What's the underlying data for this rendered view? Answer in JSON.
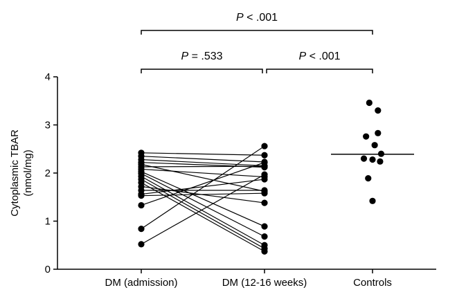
{
  "chart_data": {
    "type": "scatter",
    "ylabel_line1": "Cytoplasmic TBAR",
    "ylabel_line2": "(nmol/mg)",
    "ylim": [
      0,
      4
    ],
    "yticks": [
      "0",
      "1",
      "2",
      "3",
      "4"
    ],
    "categories": [
      "DM (admission)",
      "DM (12-16 weeks)",
      "Controls"
    ],
    "paired": [
      [
        2.42,
        2.37
      ],
      [
        2.35,
        2.23
      ],
      [
        2.28,
        2.15
      ],
      [
        2.22,
        2.12
      ],
      [
        2.18,
        1.62
      ],
      [
        2.13,
        2.14
      ],
      [
        2.08,
        1.92
      ],
      [
        2.03,
        0.89
      ],
      [
        1.99,
        0.68
      ],
      [
        1.93,
        0.5
      ],
      [
        1.87,
        0.43
      ],
      [
        1.8,
        0.37
      ],
      [
        1.72,
        1.38
      ],
      [
        1.64,
        1.64
      ],
      [
        1.56,
        1.87
      ],
      [
        1.53,
        1.58
      ],
      [
        1.33,
        2.22
      ],
      [
        0.84,
        2.56
      ],
      [
        0.52,
        1.97
      ]
    ],
    "controls": [
      3.46,
      3.3,
      2.83,
      2.76,
      2.58,
      2.4,
      2.3,
      2.28,
      2.24,
      1.89,
      1.42
    ],
    "controls_jitter": [
      -0.03,
      0.05,
      0.05,
      -0.06,
      0.02,
      0.08,
      -0.08,
      0.0,
      0.07,
      -0.04,
      0.0
    ],
    "controls_line": 2.39,
    "annotations": [
      {
        "text": "P < .001",
        "from": 0,
        "to": 2,
        "level": 2
      },
      {
        "text": "P = .533",
        "from": 0,
        "to": 1,
        "level": 1
      },
      {
        "text": "P < .001",
        "from": 1,
        "to": 2,
        "level": 1
      }
    ]
  }
}
